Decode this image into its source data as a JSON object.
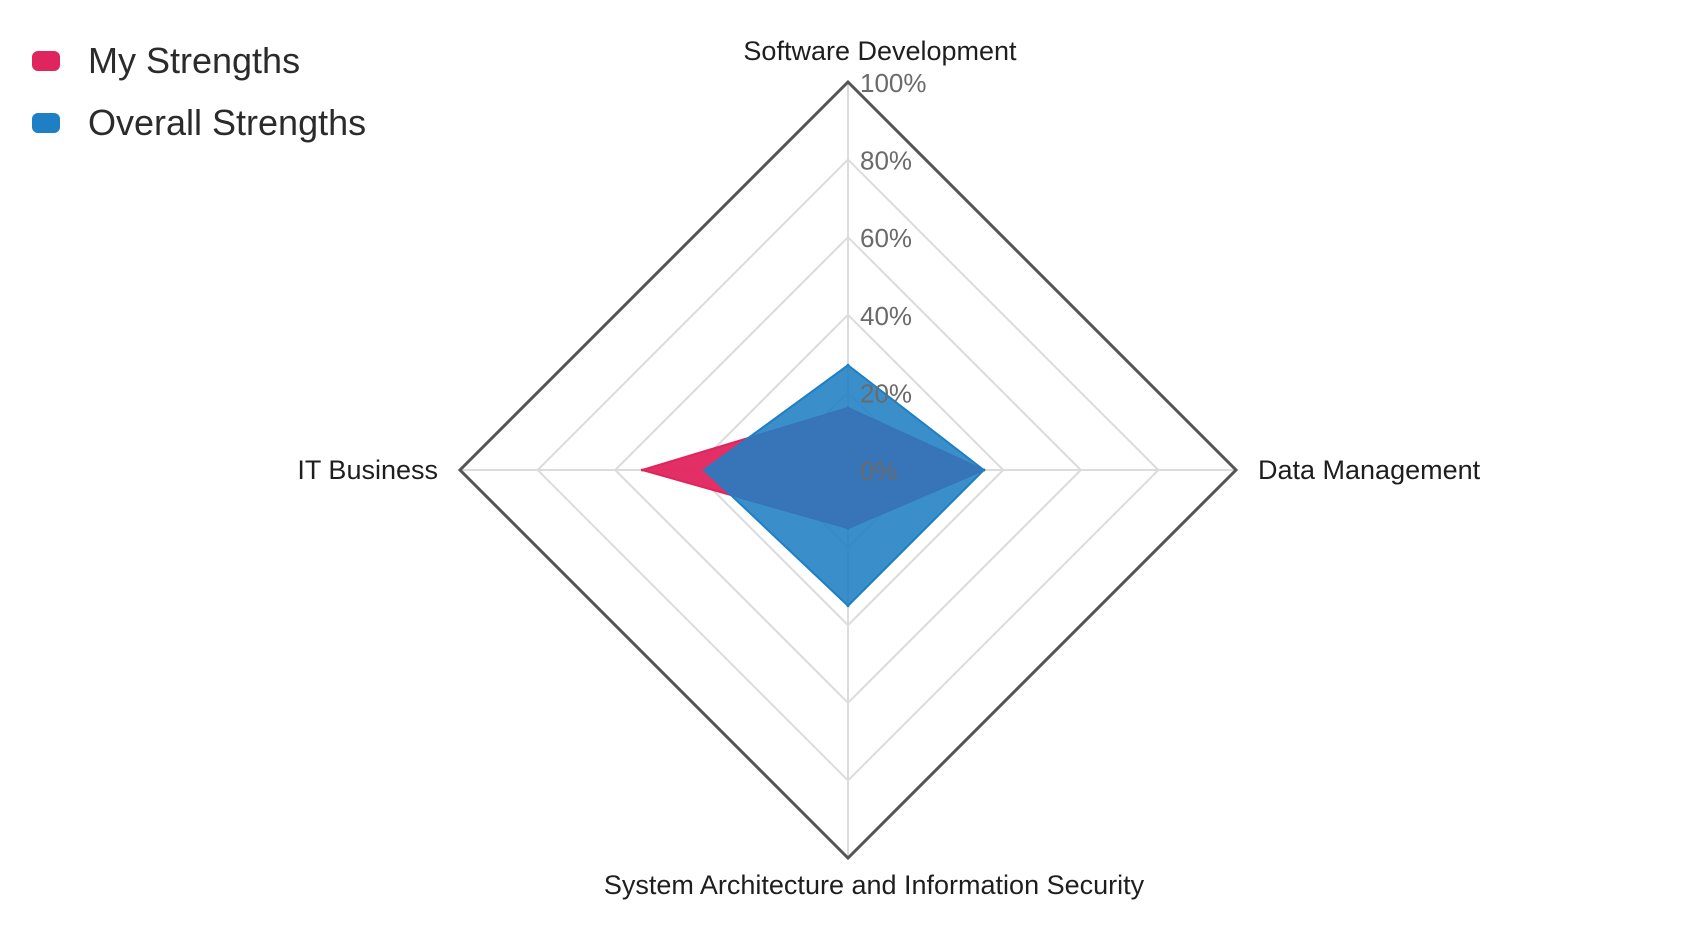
{
  "chart_data": {
    "type": "radar",
    "axes": [
      "Software Development",
      "Data Management",
      "System Architecture and Information Security",
      "IT Business"
    ],
    "tick_labels": [
      "0%",
      "20%",
      "40%",
      "60%",
      "80%",
      "100%"
    ],
    "ylim": [
      0,
      100
    ],
    "series": [
      {
        "name": "My Strengths",
        "values": [
          16,
          35,
          15,
          53
        ]
      },
      {
        "name": "Overall Strengths",
        "values": [
          27,
          35,
          35,
          37
        ]
      }
    ],
    "legend_position": "top-left",
    "grid": true
  },
  "colors": {
    "my_strengths": "#e0245e",
    "overall_strengths": "#1f7fc4",
    "grid": "#dcdcdc",
    "outer_frame": "#555555",
    "axis_label": "#1e1e1e",
    "tick_label": "#6a6a6a"
  }
}
